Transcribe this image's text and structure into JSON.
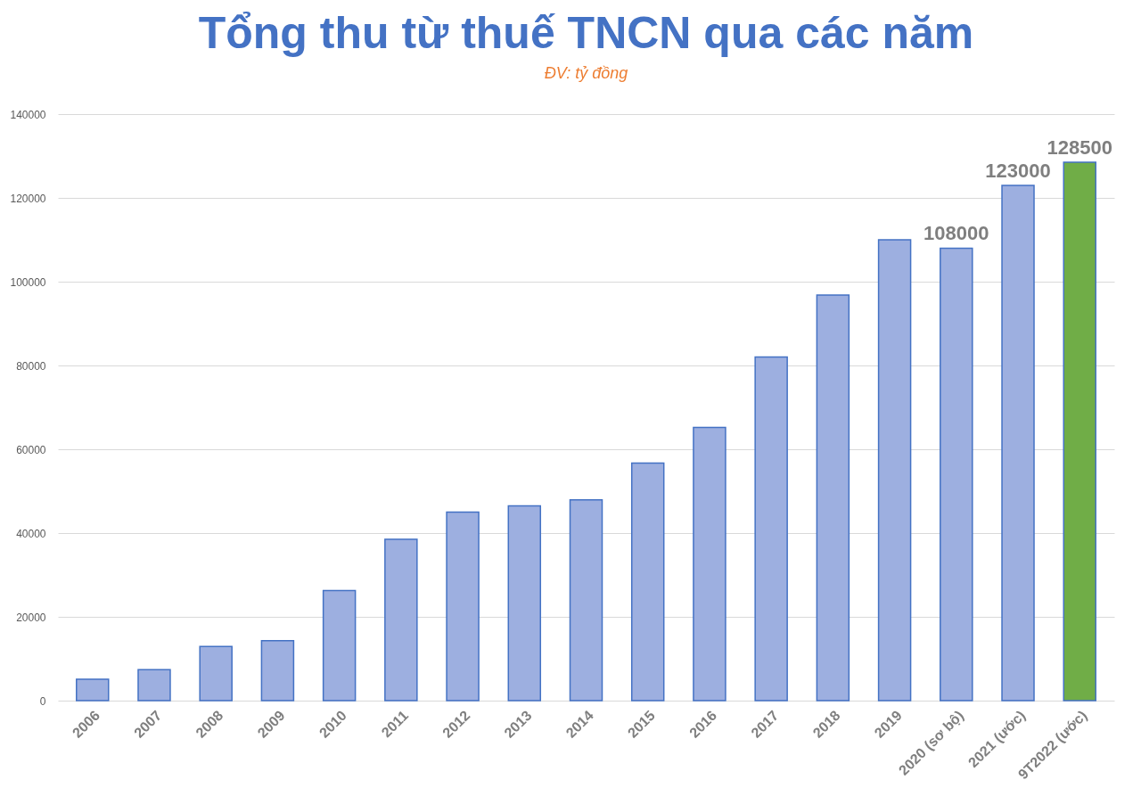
{
  "chart_data": {
    "type": "bar",
    "title": "Tổng thu từ thuế TNCN qua các năm",
    "subtitle": "ĐV: tỷ đồng",
    "categories": [
      "2006",
      "2007",
      "2008",
      "2009",
      "2010",
      "2011",
      "2012",
      "2013",
      "2014",
      "2015",
      "2016",
      "2017",
      "2018",
      "2019",
      "2020 (sơ bộ)",
      "2021 (ước)",
      "9T2022 (ước)"
    ],
    "values": [
      5100,
      7400,
      12900,
      14300,
      26300,
      38500,
      45000,
      46500,
      47900,
      56700,
      65200,
      82000,
      96800,
      110000,
      108000,
      123000,
      128500
    ],
    "colors": [
      "#9dafe0",
      "#9dafe0",
      "#9dafe0",
      "#9dafe0",
      "#9dafe0",
      "#9dafe0",
      "#9dafe0",
      "#9dafe0",
      "#9dafe0",
      "#9dafe0",
      "#9dafe0",
      "#9dafe0",
      "#9dafe0",
      "#9dafe0",
      "#9dafe0",
      "#9dafe0",
      "#70ad47"
    ],
    "value_labels": [
      null,
      null,
      null,
      null,
      null,
      null,
      null,
      null,
      null,
      null,
      null,
      null,
      null,
      null,
      "108000",
      "123000",
      "128500"
    ],
    "ylim": [
      0,
      140000
    ],
    "yticks": [
      0,
      20000,
      40000,
      60000,
      80000,
      100000,
      120000,
      140000
    ],
    "grid": "y"
  }
}
